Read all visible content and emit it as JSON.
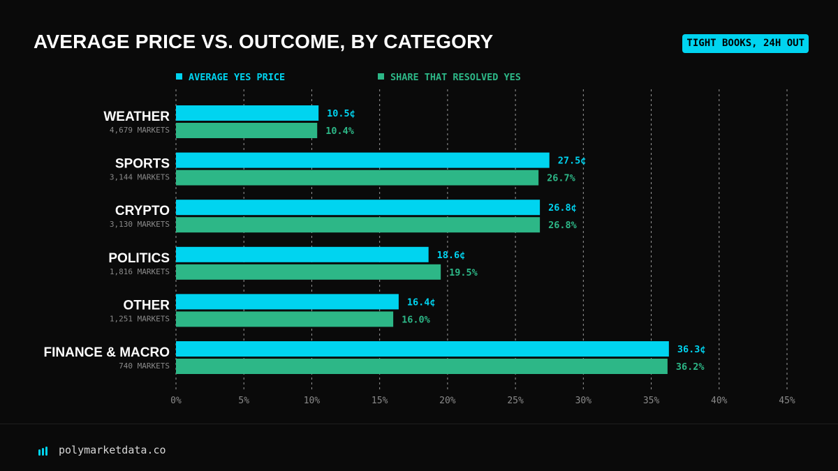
{
  "header": {
    "title": "AVERAGE PRICE VS. OUTCOME, BY CATEGORY",
    "badge": "TIGHT BOOKS, 24H OUT"
  },
  "colors": {
    "price": "#00d4f0",
    "resolved": "#2db787",
    "background": "#0a0a0a",
    "grid": "#9a9a9a",
    "tick": "#8a8a8a"
  },
  "chart_data": {
    "type": "bar",
    "orientation": "horizontal",
    "title": "AVERAGE PRICE VS. OUTCOME, BY CATEGORY",
    "categories": [
      "WEATHER",
      "SPORTS",
      "CRYPTO",
      "POLITICS",
      "OTHER",
      "FINANCE & MACRO"
    ],
    "category_sublabels": [
      "4,679 MARKETS",
      "3,144 MARKETS",
      "3,130 MARKETS",
      "1,816 MARKETS",
      "1,251 MARKETS",
      "740 MARKETS"
    ],
    "series": [
      {
        "name": "AVERAGE YES PRICE",
        "values": [
          10.5,
          27.5,
          26.8,
          18.6,
          16.4,
          36.3
        ],
        "labels": [
          "10.5¢",
          "27.5¢",
          "26.8¢",
          "18.6¢",
          "16.4¢",
          "36.3¢"
        ]
      },
      {
        "name": "SHARE THAT RESOLVED YES",
        "values": [
          10.4,
          26.7,
          26.8,
          19.5,
          16.0,
          36.2
        ],
        "labels": [
          "10.4%",
          "26.7%",
          "26.8%",
          "19.5%",
          "16.0%",
          "36.2%"
        ]
      }
    ],
    "xlim": [
      0,
      45
    ],
    "xticks": [
      0,
      5,
      10,
      15,
      20,
      25,
      30,
      35,
      40,
      45
    ],
    "xtick_labels": [
      "0%",
      "5%",
      "10%",
      "15%",
      "20%",
      "25%",
      "30%",
      "35%",
      "40%",
      "45%"
    ],
    "grid": "vertical-dashed",
    "legend": "top-left"
  },
  "footer": {
    "brand": "polymarketdata.co",
    "icon": "bar-chart-logo-icon"
  }
}
